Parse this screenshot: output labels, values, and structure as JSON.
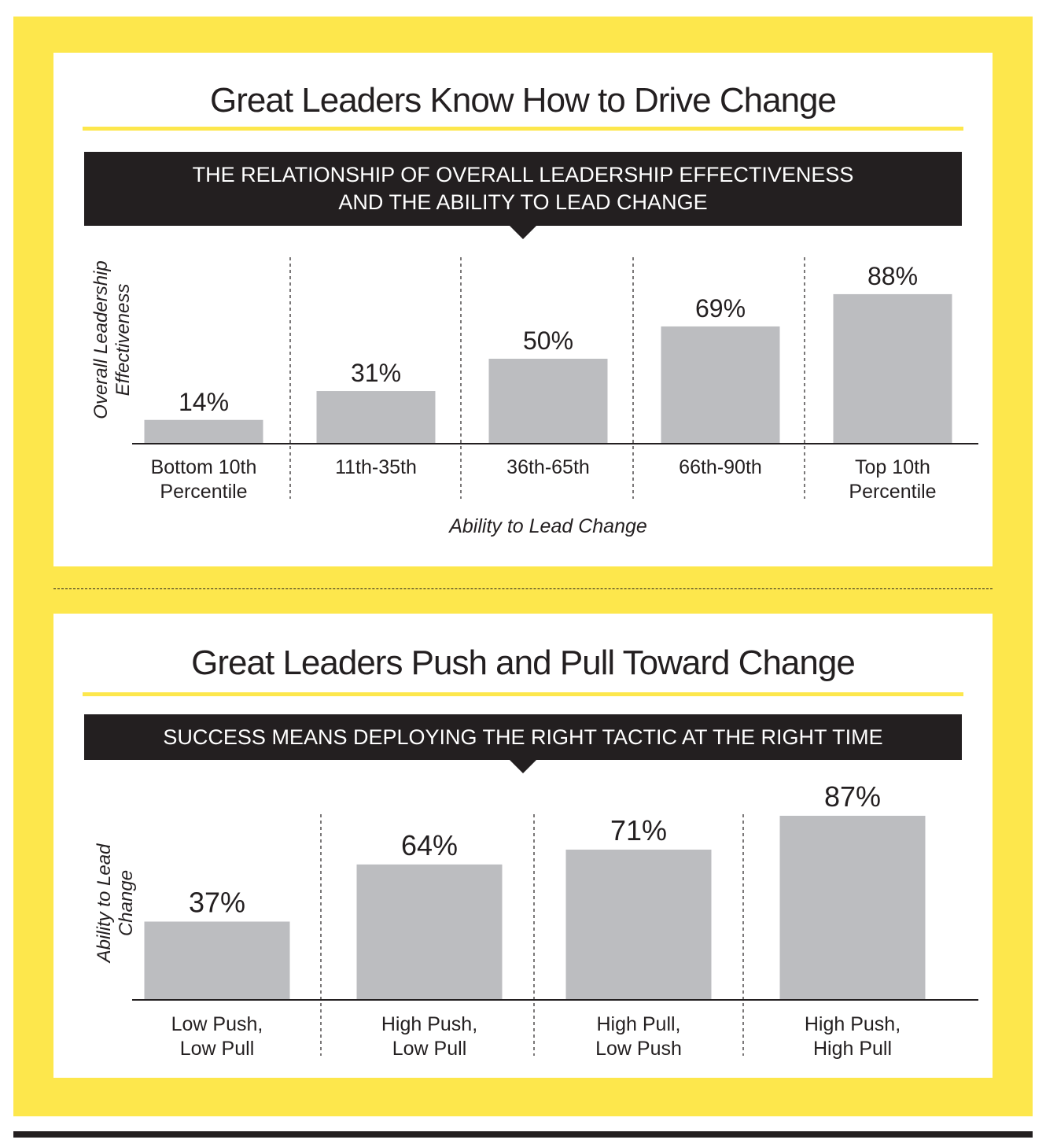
{
  "colors": {
    "frame": "#fde74c",
    "bar": "#bcbdc0",
    "banner": "#231f20",
    "text": "#231f20"
  },
  "panels": [
    {
      "title": "Great Leaders Know How to Drive Change",
      "banner": "THE RELATIONSHIP OF OVERALL LEADERSHIP EFFECTIVENESS\nAND THE ABILITY TO LEAD CHANGE"
    },
    {
      "title": "Great Leaders Push and Pull Toward Change",
      "banner": "SUCCESS MEANS DEPLOYING THE RIGHT TACTIC AT THE RIGHT TIME"
    }
  ],
  "chart_data": [
    {
      "type": "bar",
      "categories": [
        "Bottom 10th\nPercentile",
        "11th-35th",
        "36th-65th",
        "66th-90th",
        "Top 10th\nPercentile"
      ],
      "values": [
        14,
        31,
        50,
        69,
        88
      ],
      "data_labels": [
        "14%",
        "31%",
        "50%",
        "69%",
        "88%"
      ],
      "xlabel": "Ability to Lead Change",
      "ylabel": "Overall Leadership\nEffectiveness",
      "grid": false,
      "legend": "none"
    },
    {
      "type": "bar",
      "categories": [
        "Low Push,\nLow Pull",
        "High Push,\nLow Pull",
        "High Pull,\nLow Push",
        "High Push,\nHigh Pull"
      ],
      "values": [
        37,
        64,
        71,
        87
      ],
      "data_labels": [
        "37%",
        "64%",
        "71%",
        "87%"
      ],
      "xlabel": "",
      "ylabel": "Ability to Lead\nChange",
      "grid": false,
      "legend": "none"
    }
  ]
}
